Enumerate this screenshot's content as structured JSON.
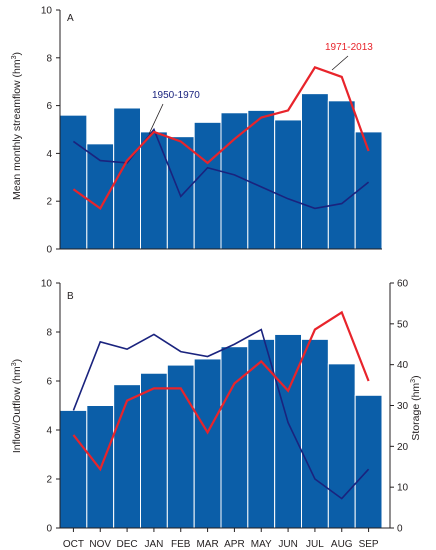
{
  "colors": {
    "bar": "#0b5ea8",
    "bar_edge": "#ffffff",
    "series_1950_1970": "#1a237e",
    "series_1971_2013": "#e8242b",
    "axis": "#231f20"
  },
  "chart_data": [
    {
      "type": "bar",
      "panel": "A",
      "ylabel": "Mean monthly streamflow (hm3)",
      "ylim": [
        0,
        10
      ],
      "yticks": [
        "0",
        "2",
        "4",
        "6",
        "8",
        "10"
      ],
      "categories": [
        "OCT",
        "NOV",
        "DEC",
        "JAN",
        "FEB",
        "MAR",
        "APR",
        "MAY",
        "JUN",
        "JUL",
        "AUG",
        "SEP"
      ],
      "series": [
        {
          "kind": "bar",
          "values": [
            5.6,
            4.4,
            5.9,
            4.9,
            4.7,
            5.3,
            5.7,
            5.8,
            5.4,
            6.5,
            6.2,
            4.9
          ]
        },
        {
          "kind": "line",
          "name": "1950-1970",
          "values": [
            4.5,
            3.7,
            3.6,
            5.0,
            2.2,
            3.4,
            3.1,
            2.6,
            2.1,
            1.7,
            1.9,
            2.8
          ]
        },
        {
          "kind": "line",
          "name": "1971-2013",
          "values": [
            2.5,
            1.7,
            3.7,
            4.9,
            4.5,
            3.6,
            4.6,
            5.5,
            5.8,
            7.6,
            7.2,
            4.1
          ]
        }
      ],
      "annotations": [
        "1950-1970",
        "1971-2013"
      ]
    },
    {
      "type": "bar",
      "panel": "B",
      "ylabel": "Inflow/Outflow (hm3)",
      "ylabel_right": "Storage (hm3)",
      "ylim": [
        0,
        10
      ],
      "ylim_right": [
        0,
        60
      ],
      "yticks": [
        "0",
        "2",
        "4",
        "6",
        "8",
        "10"
      ],
      "yticks_right": [
        "0",
        "10",
        "20",
        "30",
        "40",
        "50",
        "60"
      ],
      "categories": [
        "OCT",
        "NOV",
        "DEC",
        "JAN",
        "FEB",
        "MAR",
        "APR",
        "MAY",
        "JUN",
        "JUL",
        "AUG",
        "SEP"
      ],
      "series": [
        {
          "kind": "bar",
          "axis": "right",
          "values": [
            28.8,
            30.0,
            35.1,
            37.9,
            39.9,
            41.4,
            44.4,
            46.2,
            47.4,
            46.2,
            40.2,
            32.5
          ]
        },
        {
          "kind": "line",
          "values": [
            4.8,
            7.6,
            7.3,
            7.9,
            7.2,
            7.0,
            7.5,
            8.1,
            4.3,
            2.0,
            1.2,
            2.4
          ]
        },
        {
          "kind": "line",
          "values": [
            3.8,
            2.4,
            5.2,
            5.7,
            5.7,
            3.9,
            5.9,
            6.8,
            5.6,
            8.1,
            8.8,
            6.0
          ]
        }
      ]
    }
  ]
}
